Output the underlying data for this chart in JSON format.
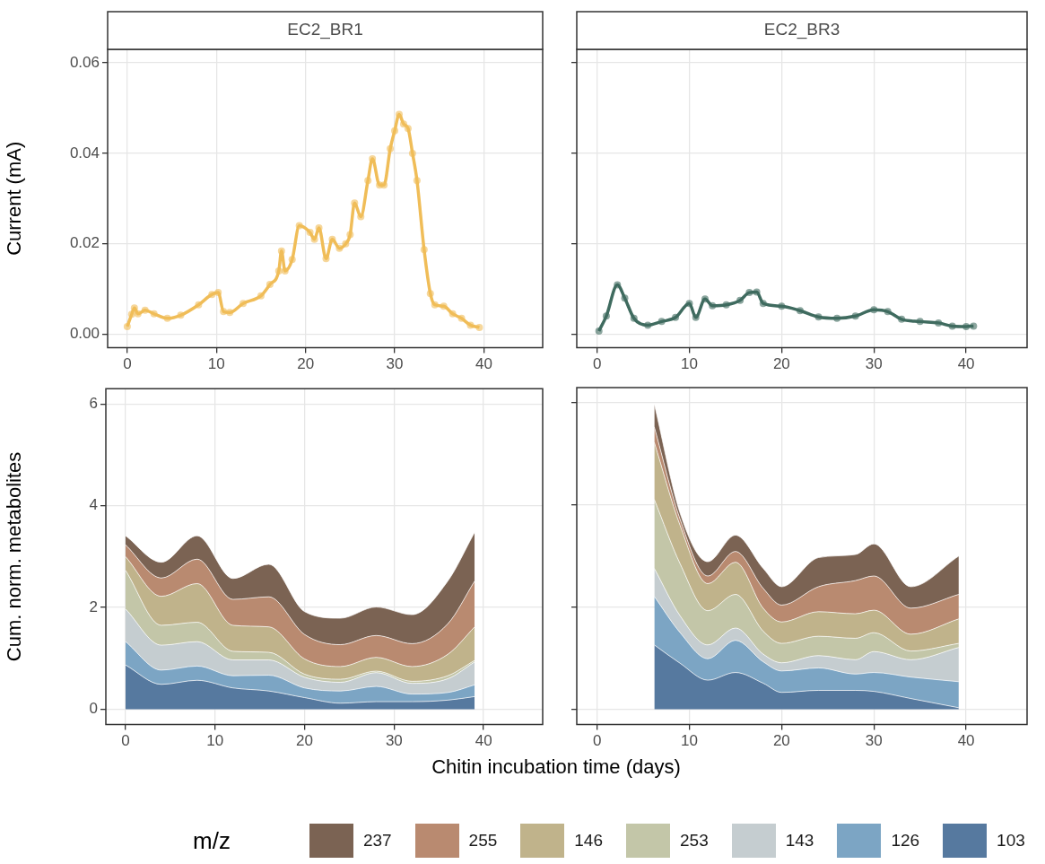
{
  "chart_data": [
    {
      "type": "line",
      "title": "EC2_BR1",
      "ylabel": "Current (mA)",
      "marker": "circle",
      "grid": true,
      "x": [
        0,
        0.5,
        0.8,
        1.2,
        2,
        3,
        4.5,
        6,
        8,
        9.5,
        10.2,
        10.8,
        11.5,
        13,
        15,
        16,
        17,
        17.3,
        17.7,
        18.5,
        19.3,
        20.5,
        21,
        21.5,
        22.3,
        23,
        23.8,
        24.5,
        25,
        25.5,
        26.2,
        27,
        27.5,
        28.3,
        28.8,
        29.5,
        30,
        30.5,
        31,
        31.5,
        32,
        32.5,
        33.3,
        34,
        34.5,
        35.5,
        36.5,
        37.5,
        38.5,
        39.5
      ],
      "series": [
        {
          "color": "#f0bd58",
          "values": [
            0.0017,
            0.0044,
            0.0058,
            0.0045,
            0.0053,
            0.0045,
            0.0035,
            0.0042,
            0.0065,
            0.0088,
            0.0092,
            0.005,
            0.0048,
            0.0068,
            0.0085,
            0.011,
            0.014,
            0.0184,
            0.014,
            0.0165,
            0.024,
            0.0225,
            0.021,
            0.0235,
            0.0167,
            0.021,
            0.019,
            0.02,
            0.022,
            0.029,
            0.026,
            0.034,
            0.0388,
            0.033,
            0.033,
            0.041,
            0.045,
            0.0486,
            0.0465,
            0.0455,
            0.04,
            0.034,
            0.0187,
            0.009,
            0.0065,
            0.0062,
            0.0045,
            0.0035,
            0.002,
            0.0015
          ]
        }
      ],
      "xlim": [
        -2.2,
        46.6
      ],
      "xticks": [
        0,
        10,
        20,
        30,
        40
      ],
      "ylim": [
        -0.003,
        0.063
      ],
      "yticks": [
        {
          "value": 0,
          "label": "0.00"
        },
        {
          "value": 0.02,
          "label": "0.02"
        },
        {
          "value": 0.04,
          "label": "0.04"
        },
        {
          "value": 0.06,
          "label": "0.06"
        }
      ]
    },
    {
      "type": "line",
      "title": "EC2_BR3",
      "marker": "circle",
      "grid": true,
      "tick_labels": "x",
      "x": [
        0.2,
        1,
        2.2,
        3,
        4,
        5.5,
        7,
        8.5,
        10,
        10.7,
        11.7,
        12.5,
        14,
        15.5,
        16.5,
        17.3,
        18,
        20,
        22,
        24,
        26,
        28,
        30,
        31.5,
        33,
        35,
        37,
        38.5,
        40,
        40.8
      ],
      "series": [
        {
          "color": "#3f6b5f",
          "values": [
            0.0007,
            0.004,
            0.0109,
            0.008,
            0.0035,
            0.002,
            0.0028,
            0.0037,
            0.0068,
            0.0037,
            0.0078,
            0.0063,
            0.0065,
            0.0075,
            0.0092,
            0.0093,
            0.0068,
            0.0062,
            0.0052,
            0.0038,
            0.0035,
            0.004,
            0.0054,
            0.005,
            0.0033,
            0.0028,
            0.0025,
            0.0018,
            0.0017,
            0.0018
          ]
        }
      ],
      "xlim": [
        -2.2,
        46.6
      ],
      "xticks": [
        0,
        10,
        20,
        30,
        40
      ],
      "ylim": [
        -0.003,
        0.063
      ],
      "yticks": [
        0,
        0.02,
        0.04,
        0.06
      ]
    },
    {
      "type": "area",
      "stacked": true,
      "ylabel": "Cum. norm. metabolites",
      "xlabel": "Chitin incubation time (days)",
      "legend": "bottom",
      "legend_title": "m/z",
      "grid": true,
      "x": [
        0,
        4,
        8,
        12,
        16,
        20,
        24,
        28,
        32,
        36,
        39
      ],
      "series": [
        {
          "name": "103",
          "color": "#56799f",
          "values": [
            0.87,
            0.49,
            0.57,
            0.42,
            0.36,
            0.23,
            0.12,
            0.15,
            0.15,
            0.18,
            0.25
          ]
        },
        {
          "name": "126",
          "color": "#7ca5c4",
          "values": [
            0.46,
            0.28,
            0.28,
            0.24,
            0.31,
            0.19,
            0.24,
            0.3,
            0.15,
            0.15,
            0.23
          ]
        },
        {
          "name": "143",
          "color": "#c5cdd0",
          "values": [
            0.64,
            0.49,
            0.48,
            0.31,
            0.3,
            0.21,
            0.17,
            0.27,
            0.21,
            0.27,
            0.45
          ]
        },
        {
          "name": "253",
          "color": "#c3c6a8",
          "values": [
            0.76,
            0.39,
            0.38,
            0.17,
            0.15,
            0.06,
            0.06,
            0.03,
            0.04,
            0.06,
            0.03
          ]
        },
        {
          "name": "146",
          "color": "#c0b38b",
          "values": [
            0.27,
            0.57,
            0.76,
            0.51,
            0.5,
            0.3,
            0.25,
            0.27,
            0.29,
            0.42,
            0.66
          ]
        },
        {
          "name": "255",
          "color": "#b98a70",
          "values": [
            0.23,
            0.36,
            0.48,
            0.51,
            0.59,
            0.48,
            0.43,
            0.43,
            0.45,
            0.6,
            0.9
          ]
        },
        {
          "name": "237",
          "color": "#7b6353",
          "values": [
            0.18,
            0.31,
            0.46,
            0.41,
            0.64,
            0.45,
            0.52,
            0.56,
            0.57,
            0.84,
            0.96
          ]
        }
      ],
      "xlim": [
        -2.2,
        46.6
      ],
      "xticks": [
        0,
        10,
        20,
        30,
        40
      ],
      "ylim": [
        -0.3,
        6.3
      ],
      "yticks": [
        0,
        2,
        4,
        6
      ]
    },
    {
      "type": "area",
      "stacked": true,
      "grid": true,
      "tick_labels": "x",
      "x": [
        6.2,
        9,
        12,
        15,
        18,
        20,
        24,
        28,
        30,
        34,
        39.2
      ],
      "series": [
        {
          "color": "#56799f",
          "values": [
            1.26,
            0.9,
            0.57,
            0.72,
            0.51,
            0.33,
            0.37,
            0.37,
            0.35,
            0.21,
            0.03
          ]
        },
        {
          "color": "#7ca5c4",
          "values": [
            0.95,
            0.6,
            0.42,
            0.63,
            0.42,
            0.42,
            0.44,
            0.32,
            0.37,
            0.42,
            0.51
          ]
        },
        {
          "color": "#c5cdd0",
          "values": [
            0.55,
            0.33,
            0.27,
            0.24,
            0.15,
            0.16,
            0.24,
            0.28,
            0.41,
            0.34,
            0.67
          ]
        },
        {
          "color": "#c3c6a8",
          "values": [
            1.35,
            1.02,
            0.67,
            0.66,
            0.45,
            0.38,
            0.38,
            0.42,
            0.37,
            0.17,
            0.08
          ]
        },
        {
          "color": "#c0b38b",
          "values": [
            1.12,
            0.75,
            0.53,
            0.63,
            0.45,
            0.42,
            0.48,
            0.48,
            0.44,
            0.33,
            0.48
          ]
        },
        {
          "color": "#b98a70",
          "values": [
            0.3,
            0.12,
            0.15,
            0.21,
            0.39,
            0.33,
            0.49,
            0.65,
            0.67,
            0.51,
            0.48
          ]
        },
        {
          "color": "#7b6353",
          "values": [
            0.45,
            0.12,
            0.28,
            0.32,
            0.39,
            0.36,
            0.57,
            0.51,
            0.63,
            0.42,
            0.75
          ]
        }
      ],
      "xlim": [
        -2.2,
        46.6
      ],
      "xticks": [
        0,
        10,
        20,
        30,
        40
      ],
      "ylim": [
        -0.3,
        6.3
      ],
      "yticks": [
        0,
        2,
        4,
        6
      ]
    }
  ]
}
